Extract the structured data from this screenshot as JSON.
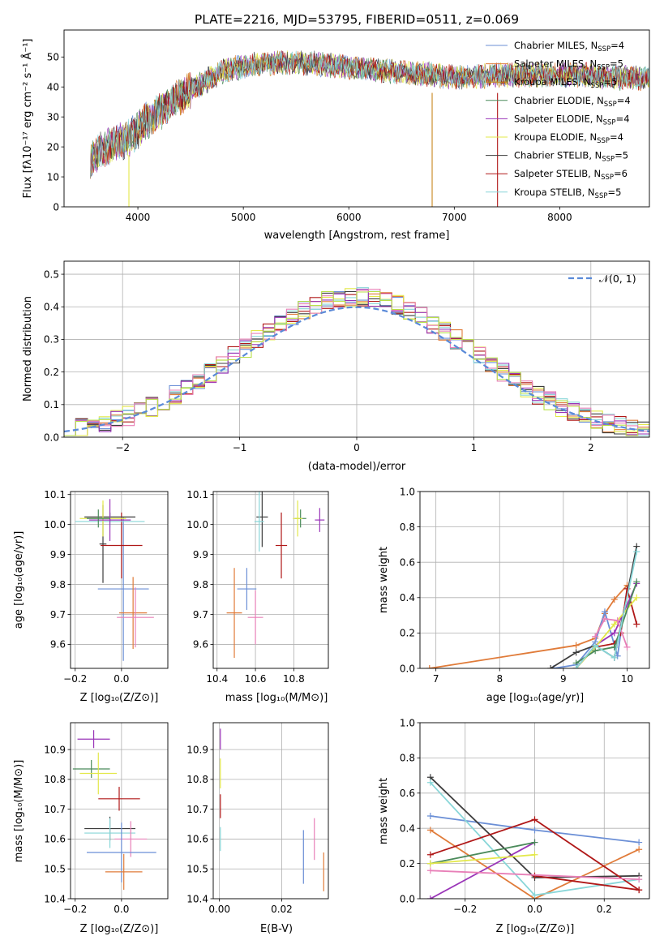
{
  "figure": {
    "title": "PLATE=2216, MJD=53795, FIBERID=0511, z=0.069"
  },
  "colors": {
    "Chabrier MILES": "#6b8fd6",
    "Salpeter MILES": "#e07b39",
    "Kroupa MILES": "#c8861d",
    "Chabrier ELODIE": "#4a8a5a",
    "Salpeter ELODIE": "#9a35b8",
    "Kroupa ELODIE": "#e3e84a",
    "Chabrier STELIB": "#3d3d3d",
    "Salpeter STELIB": "#b01818",
    "Kroupa STELIB": "#88d6d8",
    "pink": "#e880b8",
    "lime": "#b8e04a",
    "normal_curve": "#5a8ad8"
  },
  "chart_data": [
    {
      "id": "spectrum",
      "type": "line",
      "title": "PLATE=2216, MJD=53795, FIBERID=0511, z=0.069",
      "xlabel": "wavelength [Angstrom, rest frame]",
      "ylabel_main": "Flux [f",
      "ylabel_unit": "10^-17 erg cm^-2 s^-1 A^-1",
      "xlim": [
        3300,
        8850
      ],
      "ylim": [
        0,
        59
      ],
      "xticks": [
        4000,
        5000,
        6000,
        7000,
        8000
      ],
      "yticks": [
        0,
        10,
        20,
        30,
        40,
        50
      ],
      "continuum": [
        [
          3550,
          16
        ],
        [
          3700,
          20
        ],
        [
          3850,
          22
        ],
        [
          3950,
          24
        ],
        [
          4100,
          29
        ],
        [
          4250,
          33
        ],
        [
          4400,
          37
        ],
        [
          4600,
          41
        ],
        [
          4800,
          45
        ],
        [
          5000,
          47
        ],
        [
          5300,
          48
        ],
        [
          5600,
          48
        ],
        [
          5900,
          47
        ],
        [
          6200,
          46
        ],
        [
          6500,
          45
        ],
        [
          6800,
          44
        ],
        [
          7100,
          43
        ],
        [
          7400,
          44
        ],
        [
          7800,
          44
        ],
        [
          8200,
          44
        ],
        [
          8600,
          43
        ],
        [
          8850,
          43
        ]
      ],
      "line_dips": [
        {
          "series": "Kroupa ELODIE",
          "x": 3915,
          "y": 0
        },
        {
          "series": "Kroupa MILES",
          "x": 6790,
          "y": 0
        },
        {
          "series": "Salpeter STELIB",
          "x": 7410,
          "y": 0
        }
      ],
      "legend_position": "top-right",
      "legend": [
        {
          "label": "Chabrier MILES, N",
          "n": "4",
          "series": "Chabrier MILES"
        },
        {
          "label": "Salpeter MILES, N",
          "n": "5",
          "series": "Salpeter MILES"
        },
        {
          "label": "Kroupa MILES, N",
          "n": "5",
          "series": "Kroupa MILES"
        },
        {
          "label": "Chabrier ELODIE, N",
          "n": "4",
          "series": "Chabrier ELODIE"
        },
        {
          "label": "Salpeter ELODIE, N",
          "n": "4",
          "series": "Salpeter ELODIE"
        },
        {
          "label": "Kroupa ELODIE, N",
          "n": "4",
          "series": "Kroupa ELODIE"
        },
        {
          "label": "Chabrier STELIB, N",
          "n": "5",
          "series": "Chabrier STELIB"
        },
        {
          "label": "Salpeter STELIB, N",
          "n": "6",
          "series": "Salpeter STELIB"
        },
        {
          "label": "Kroupa STELIB, N",
          "n": "5",
          "series": "Kroupa STELIB"
        }
      ]
    },
    {
      "id": "residuals",
      "type": "step",
      "xlabel": "(data-model)/error",
      "ylabel": "Normed distribution",
      "xlim": [
        -2.5,
        2.5
      ],
      "ylim": [
        0,
        0.54
      ],
      "xticks": [
        -2,
        -1,
        0,
        1,
        2
      ],
      "yticks": [
        0.0,
        0.1,
        0.2,
        0.3,
        0.4,
        0.5
      ],
      "grid": true,
      "bin_width": 0.1,
      "normal_legend": "N(0,1)",
      "legend_position": "top-right",
      "series_colors": [
        "Chabrier MILES",
        "Salpeter MILES",
        "Kroupa ELODIE",
        "Chabrier STELIB",
        "Salpeter STELIB",
        "Kroupa STELIB",
        "Salpeter ELODIE",
        "pink",
        "lime"
      ]
    },
    {
      "id": "age_vs_Z",
      "type": "errorbar",
      "xlabel": "Z [log10(Z/Z⊙)]",
      "ylabel": "age  [log10(age/yr)]",
      "xlim": [
        -0.22,
        0.2
      ],
      "ylim": [
        9.52,
        10.11
      ],
      "xticks": [
        -0.2,
        0.0
      ],
      "xticklabels": [
        "−0.2",
        "0.0"
      ],
      "yticks": [
        9.6,
        9.7,
        9.8,
        9.9,
        10.0,
        10.1
      ],
      "grid": true,
      "points": [
        {
          "series": "Chabrier MILES",
          "x": 0.008,
          "y": 9.785,
          "xerr": 0.11,
          "yerr": 0.24
        },
        {
          "series": "Salpeter MILES",
          "x": 0.05,
          "y": 9.705,
          "xerr": 0.06,
          "yerr": 0.12
        },
        {
          "series": "pink",
          "x": 0.06,
          "y": 9.69,
          "xerr": 0.08,
          "yerr": 0.1
        },
        {
          "series": "Chabrier STELIB",
          "x": -0.08,
          "y": 9.935,
          "xerr": 0.015,
          "yerr": 0.13
        },
        {
          "series": "Salpeter STELIB",
          "x": 0.0,
          "y": 9.93,
          "xerr": 0.09,
          "yerr": 0.11
        },
        {
          "series": "Chabrier STELIB",
          "x": -0.05,
          "y": 10.025,
          "xerr": 0.11,
          "yerr": 0.015
        },
        {
          "series": "Kroupa STELIB",
          "x": -0.05,
          "y": 10.01,
          "xerr": 0.15,
          "yerr": 0.02
        },
        {
          "series": "Kroupa ELODIE",
          "x": -0.08,
          "y": 10.02,
          "xerr": 0.1,
          "yerr": 0.06
        },
        {
          "series": "Salpeter ELODIE",
          "x": -0.05,
          "y": 10.015,
          "xerr": 0.09,
          "yerr": 0.07
        },
        {
          "series": "Chabrier ELODIE",
          "x": -0.1,
          "y": 10.02,
          "xerr": 0.05,
          "yerr": 0.03
        }
      ]
    },
    {
      "id": "age_vs_mass",
      "type": "errorbar",
      "xlabel": "mass [log10(M/M⊙)]",
      "xlim": [
        10.38,
        10.98
      ],
      "ylim": [
        9.52,
        10.11
      ],
      "xticks": [
        10.4,
        10.6,
        10.8
      ],
      "xticklabels": [
        "10.4",
        "10.6",
        "10.8"
      ],
      "yticks": [
        9.6,
        9.7,
        9.8,
        9.9,
        10.0,
        10.1
      ],
      "grid": true,
      "points": [
        {
          "series": "Chabrier MILES",
          "x": 10.555,
          "y": 9.785,
          "xerr": 0.05,
          "yerr": 0.07
        },
        {
          "series": "Salpeter MILES",
          "x": 10.49,
          "y": 9.705,
          "xerr": 0.04,
          "yerr": 0.15
        },
        {
          "series": "pink",
          "x": 10.6,
          "y": 9.69,
          "xerr": 0.04,
          "yerr": 0.09
        },
        {
          "series": "Salpeter STELIB",
          "x": 10.735,
          "y": 9.93,
          "xerr": 0.03,
          "yerr": 0.11
        },
        {
          "series": "Chabrier STELIB",
          "x": 10.635,
          "y": 10.025,
          "xerr": 0.03,
          "yerr": 0.1
        },
        {
          "series": "Kroupa STELIB",
          "x": 10.62,
          "y": 10.01,
          "xerr": 0.025,
          "yerr": 0.1
        },
        {
          "series": "Chabrier ELODIE",
          "x": 10.835,
          "y": 10.02,
          "xerr": 0.03,
          "yerr": 0.03
        },
        {
          "series": "Kroupa ELODIE",
          "x": 10.82,
          "y": 10.02,
          "xerr": 0.025,
          "yerr": 0.06
        },
        {
          "series": "Salpeter ELODIE",
          "x": 10.935,
          "y": 10.015,
          "xerr": 0.025,
          "yerr": 0.04
        }
      ]
    },
    {
      "id": "weight_vs_age",
      "type": "line",
      "xlabel": "age  [log10(age/yr)]",
      "ylabel": "mass weight",
      "xlim": [
        6.75,
        10.35
      ],
      "ylim": [
        0,
        1
      ],
      "xticks": [
        7,
        8,
        9,
        10
      ],
      "yticks": [
        0.0,
        0.2,
        0.4,
        0.6,
        0.8,
        1.0
      ],
      "grid": true,
      "series": [
        {
          "name": "Salpeter MILES",
          "x": [
            6.9,
            9.2,
            9.5,
            9.65,
            9.8,
            10.0
          ],
          "y": [
            0.0,
            0.13,
            0.17,
            0.31,
            0.39,
            0.47
          ]
        },
        {
          "name": "Chabrier MILES",
          "x": [
            8.85,
            9.2,
            9.5,
            9.65,
            9.85,
            10.0
          ],
          "y": [
            0.0,
            0.02,
            0.15,
            0.32,
            0.07,
            0.45
          ]
        },
        {
          "name": "Chabrier STELIB",
          "x": [
            8.8,
            9.2,
            9.5,
            9.8,
            10.15
          ],
          "y": [
            0.0,
            0.09,
            0.13,
            0.06,
            0.69
          ]
        },
        {
          "name": "Salpeter STELIB",
          "x": [
            9.2,
            9.5,
            9.8,
            9.9,
            10.0,
            10.15
          ],
          "y": [
            0.0,
            0.12,
            0.14,
            0.2,
            0.45,
            0.25
          ]
        },
        {
          "name": "Salpeter ELODIE",
          "x": [
            9.2,
            9.5,
            9.8,
            10.15
          ],
          "y": [
            0.0,
            0.13,
            0.2,
            0.48
          ]
        },
        {
          "name": "Kroupa ELODIE",
          "x": [
            9.2,
            9.5,
            9.8,
            10.15
          ],
          "y": [
            0.0,
            0.12,
            0.25,
            0.4
          ]
        },
        {
          "name": "pink",
          "x": [
            9.5,
            9.65,
            9.85,
            10.0
          ],
          "y": [
            0.18,
            0.28,
            0.27,
            0.12
          ]
        },
        {
          "name": "Chabrier ELODIE",
          "x": [
            9.2,
            9.5,
            9.8,
            10.15
          ],
          "y": [
            0.03,
            0.1,
            0.12,
            0.49
          ]
        },
        {
          "name": "Kroupa STELIB",
          "x": [
            9.2,
            9.5,
            9.8,
            10.15
          ],
          "y": [
            0.0,
            0.13,
            0.06,
            0.66
          ]
        }
      ]
    },
    {
      "id": "mass_vs_Z",
      "type": "errorbar",
      "xlabel": "Z [log10(Z/Z⊙)]",
      "ylabel": "mass [log10(M/M⊙)]",
      "xlim": [
        -0.22,
        0.2
      ],
      "ylim": [
        10.4,
        10.99
      ],
      "xticks": [
        -0.2,
        0.0
      ],
      "xticklabels": [
        "−0.2",
        "0.0"
      ],
      "yticks": [
        10.4,
        10.5,
        10.6,
        10.7,
        10.8,
        10.9
      ],
      "grid": true,
      "points": [
        {
          "series": "Salpeter ELODIE",
          "x": -0.12,
          "y": 10.935,
          "xerr": 0.07,
          "yerr": 0.03
        },
        {
          "series": "Chabrier ELODIE",
          "x": -0.13,
          "y": 10.835,
          "xerr": 0.08,
          "yerr": 0.03
        },
        {
          "series": "Kroupa ELODIE",
          "x": -0.1,
          "y": 10.82,
          "xerr": 0.08,
          "yerr": 0.07
        },
        {
          "series": "Salpeter STELIB",
          "x": -0.01,
          "y": 10.735,
          "xerr": 0.09,
          "yerr": 0.04
        },
        {
          "series": "Chabrier STELIB",
          "x": -0.05,
          "y": 10.635,
          "xerr": 0.11,
          "yerr": 0.04
        },
        {
          "series": "Kroupa STELIB",
          "x": -0.05,
          "y": 10.62,
          "xerr": 0.11,
          "yerr": 0.05
        },
        {
          "series": "pink",
          "x": 0.04,
          "y": 10.6,
          "xerr": 0.07,
          "yerr": 0.06
        },
        {
          "series": "Chabrier MILES",
          "x": 0.0,
          "y": 10.555,
          "xerr": 0.15,
          "yerr": 0.1
        },
        {
          "series": "Salpeter MILES",
          "x": 0.01,
          "y": 10.49,
          "xerr": 0.08,
          "yerr": 0.06
        }
      ]
    },
    {
      "id": "mass_vs_ebv",
      "type": "errorbar",
      "xlabel": "E(B-V)",
      "xlim": [
        -0.002,
        0.035
      ],
      "ylim": [
        10.4,
        10.99
      ],
      "xticks": [
        0.0,
        0.02
      ],
      "xticklabels": [
        "0.00",
        "0.02"
      ],
      "yticks": [
        10.4,
        10.5,
        10.6,
        10.7,
        10.8,
        10.9
      ],
      "grid": true,
      "points": [
        {
          "series": "Salpeter ELODIE",
          "x": 0.0003,
          "y": 10.935,
          "xerr": 0.0,
          "yerr": 0.035
        },
        {
          "series": "Kroupa ELODIE",
          "x": 0.0003,
          "y": 10.82,
          "xerr": 0.0,
          "yerr": 0.05
        },
        {
          "series": "Salpeter STELIB",
          "x": 0.0003,
          "y": 10.71,
          "xerr": 0.0,
          "yerr": 0.04
        },
        {
          "series": "Kroupa STELIB",
          "x": 0.0003,
          "y": 10.6,
          "xerr": 0.0,
          "yerr": 0.04
        },
        {
          "series": "Chabrier MILES",
          "x": 0.027,
          "y": 10.54,
          "xerr": 0.0,
          "yerr": 0.09
        },
        {
          "series": "pink",
          "x": 0.0305,
          "y": 10.6,
          "xerr": 0.0,
          "yerr": 0.07
        },
        {
          "series": "Salpeter MILES",
          "x": 0.0335,
          "y": 10.49,
          "xerr": 0.0,
          "yerr": 0.065
        }
      ]
    },
    {
      "id": "weight_vs_Z",
      "type": "line",
      "xlabel": "Z [log10(Z/Z⊙)]",
      "ylabel": "mass weight",
      "xlim": [
        -0.33,
        0.33
      ],
      "ylim": [
        0,
        1
      ],
      "xticks": [
        -0.2,
        0.0,
        0.2
      ],
      "xticklabels": [
        "−0.2",
        "0.0",
        "0.2"
      ],
      "yticks": [
        0.0,
        0.2,
        0.4,
        0.6,
        0.8,
        1.0
      ],
      "grid": true,
      "series": [
        {
          "name": "Chabrier MILES",
          "x": [
            -0.3,
            0.0,
            0.3
          ],
          "y": [
            0.47,
            0.39,
            0.32
          ]
        },
        {
          "name": "Salpeter MILES",
          "x": [
            -0.3,
            0.0,
            0.3
          ],
          "y": [
            0.39,
            0.0,
            0.28
          ]
        },
        {
          "name": "Chabrier STELIB",
          "x": [
            -0.3,
            0.0,
            0.3
          ],
          "y": [
            0.69,
            0.12,
            0.13
          ]
        },
        {
          "name": "Kroupa STELIB",
          "x": [
            -0.3,
            0.0,
            0.3
          ],
          "y": [
            0.66,
            0.02,
            0.11
          ]
        },
        {
          "name": "Salpeter STELIB",
          "x": [
            -0.3,
            0.0,
            0.3
          ],
          "y": [
            0.25,
            0.45,
            0.05
          ]
        },
        {
          "name": "Salpeter STELIB",
          "x": [
            0.0,
            0.3
          ],
          "y": [
            0.13,
            0.05
          ]
        },
        {
          "name": "Salpeter ELODIE",
          "x": [
            -0.3,
            0.0
          ],
          "y": [
            0.0,
            0.32
          ]
        },
        {
          "name": "Chabrier ELODIE",
          "x": [
            -0.3,
            0.0
          ],
          "y": [
            0.2,
            0.32
          ]
        },
        {
          "name": "Kroupa ELODIE",
          "x": [
            -0.3,
            0.0
          ],
          "y": [
            0.2,
            0.25
          ]
        },
        {
          "name": "pink",
          "x": [
            -0.3,
            0.3
          ],
          "y": [
            0.16,
            0.11
          ]
        }
      ]
    }
  ]
}
